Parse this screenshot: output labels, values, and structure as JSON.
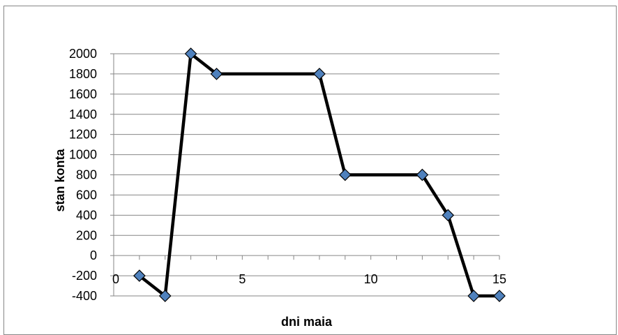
{
  "chart_data": {
    "type": "line",
    "title": "",
    "xlabel": "dni maia",
    "ylabel": "stan konta",
    "xlim": [
      0,
      15
    ],
    "ylim": [
      -400,
      2000
    ],
    "x_ticks": [
      0,
      5,
      10,
      15
    ],
    "y_ticks": [
      -400,
      -200,
      0,
      200,
      400,
      600,
      800,
      1000,
      1200,
      1400,
      1600,
      1800,
      2000
    ],
    "grid": "horizontal",
    "legend": "none",
    "series": [
      {
        "x": [
          1,
          2,
          3,
          4,
          8,
          9,
          12,
          13,
          14,
          15
        ],
        "y": [
          -200,
          -400,
          2000,
          1800,
          1800,
          800,
          800,
          400,
          -400,
          -400
        ]
      }
    ],
    "colors": {
      "line": "#000000",
      "marker_fill": "#4F81BD",
      "marker_stroke": "#000000",
      "grid": "#868686",
      "axis": "#868686"
    }
  }
}
